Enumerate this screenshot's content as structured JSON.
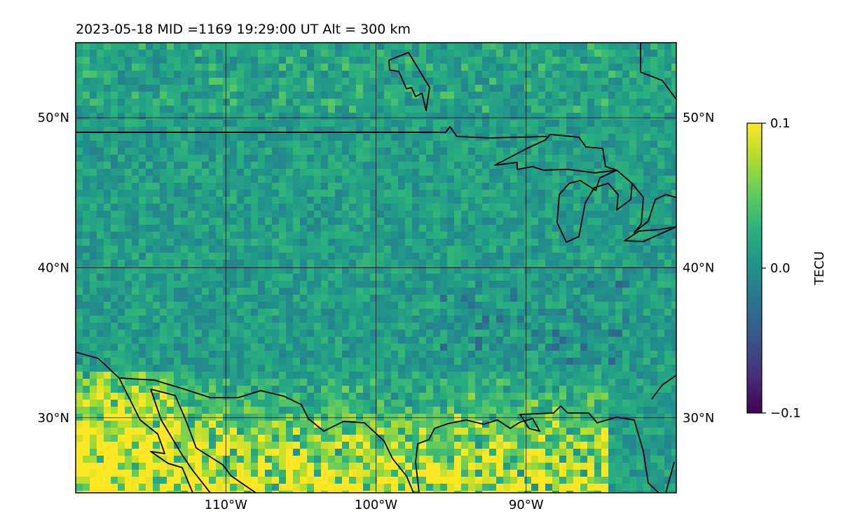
{
  "title": "2023-05-18  MID =1169    19:29:00  UT  Alt = 300 km",
  "map": {
    "lon_range": [
      -120,
      -80
    ],
    "lat_range": [
      25,
      55
    ],
    "lat_ticks": [
      {
        "value": 30,
        "label": "30°N"
      },
      {
        "value": 40,
        "label": "40°N"
      },
      {
        "value": 50,
        "label": "50°N"
      }
    ],
    "lon_ticks": [
      {
        "value": -110,
        "label": "110°W"
      },
      {
        "value": -100,
        "label": "100°W"
      },
      {
        "value": -90,
        "label": "90°W"
      }
    ],
    "gridlines": true
  },
  "colorbar": {
    "label": "TECU",
    "colormap": "viridis",
    "min": -0.1,
    "max": 0.1,
    "ticks": [
      {
        "value": 0.1,
        "label": "0.1"
      },
      {
        "value": 0.0,
        "label": "0.0"
      },
      {
        "value": -0.1,
        "label": "−0.1"
      }
    ]
  }
}
